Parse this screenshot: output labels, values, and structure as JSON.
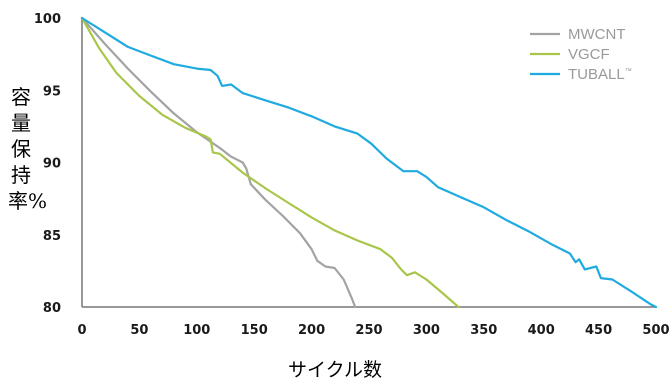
{
  "chart_data": {
    "type": "line",
    "title": "",
    "xlabel": "サイクル数",
    "ylabel": "容量保持率%",
    "xlim": [
      0,
      500
    ],
    "ylim": [
      80,
      100
    ],
    "xticks": [
      "0",
      "50",
      "100",
      "150",
      "200",
      "250",
      "300",
      "350",
      "400",
      "450",
      "500"
    ],
    "yticks": [
      "80",
      "85",
      "90",
      "95",
      "100"
    ],
    "legend_position": "top-right",
    "grid": false,
    "series": [
      {
        "name": "MWCNT",
        "color": "#a3a3a3",
        "points": [
          [
            0,
            100
          ],
          [
            20,
            98.2
          ],
          [
            40,
            96.5
          ],
          [
            60,
            94.9
          ],
          [
            80,
            93.4
          ],
          [
            100,
            92.1
          ],
          [
            120,
            91.0
          ],
          [
            130,
            90.4
          ],
          [
            140,
            90.0
          ],
          [
            143,
            89.6
          ],
          [
            147,
            88.5
          ],
          [
            160,
            87.4
          ],
          [
            175,
            86.3
          ],
          [
            190,
            85.1
          ],
          [
            200,
            84.0
          ],
          [
            205,
            83.2
          ],
          [
            212,
            82.8
          ],
          [
            220,
            82.7
          ],
          [
            228,
            81.9
          ],
          [
            235,
            80.6
          ],
          [
            238,
            80.0
          ]
        ]
      },
      {
        "name": "VGCF",
        "color": "#a8c64a",
        "points": [
          [
            0,
            100
          ],
          [
            15,
            97.9
          ],
          [
            30,
            96.2
          ],
          [
            50,
            94.6
          ],
          [
            70,
            93.3
          ],
          [
            90,
            92.4
          ],
          [
            108,
            91.8
          ],
          [
            112,
            91.6
          ],
          [
            114,
            90.7
          ],
          [
            120,
            90.6
          ],
          [
            140,
            89.3
          ],
          [
            160,
            88.2
          ],
          [
            180,
            87.2
          ],
          [
            200,
            86.2
          ],
          [
            220,
            85.3
          ],
          [
            240,
            84.6
          ],
          [
            260,
            84.0
          ],
          [
            270,
            83.4
          ],
          [
            278,
            82.6
          ],
          [
            283,
            82.2
          ],
          [
            290,
            82.4
          ],
          [
            300,
            81.9
          ],
          [
            315,
            80.9
          ],
          [
            325,
            80.2
          ],
          [
            328,
            80.0
          ]
        ]
      },
      {
        "name": "TUBALL™",
        "color": "#1fabdf",
        "points": [
          [
            0,
            100
          ],
          [
            20,
            99.0
          ],
          [
            40,
            98.0
          ],
          [
            60,
            97.4
          ],
          [
            80,
            96.8
          ],
          [
            100,
            96.5
          ],
          [
            112,
            96.4
          ],
          [
            118,
            96.0
          ],
          [
            122,
            95.3
          ],
          [
            130,
            95.4
          ],
          [
            140,
            94.8
          ],
          [
            160,
            94.3
          ],
          [
            180,
            93.8
          ],
          [
            200,
            93.2
          ],
          [
            220,
            92.5
          ],
          [
            240,
            92.0
          ],
          [
            252,
            91.3
          ],
          [
            265,
            90.3
          ],
          [
            280,
            89.4
          ],
          [
            292,
            89.4
          ],
          [
            300,
            89.0
          ],
          [
            310,
            88.3
          ],
          [
            330,
            87.6
          ],
          [
            350,
            86.9
          ],
          [
            370,
            86.0
          ],
          [
            390,
            85.2
          ],
          [
            410,
            84.3
          ],
          [
            425,
            83.7
          ],
          [
            430,
            83.1
          ],
          [
            433,
            83.3
          ],
          [
            438,
            82.6
          ],
          [
            448,
            82.8
          ],
          [
            452,
            82.0
          ],
          [
            462,
            81.9
          ],
          [
            480,
            81.0
          ],
          [
            495,
            80.2
          ],
          [
            500,
            80.0
          ]
        ]
      }
    ]
  }
}
